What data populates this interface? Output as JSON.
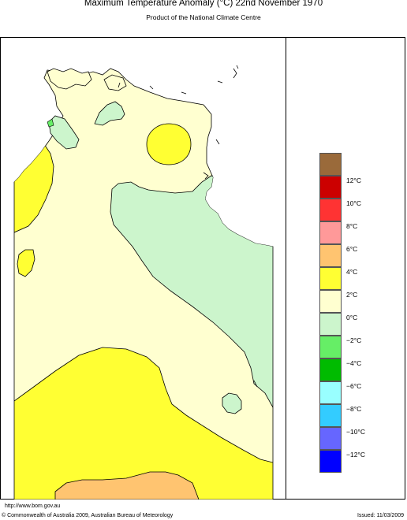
{
  "header": {
    "title": "Maximum Temperature Anomaly (°C)  22nd November 1970",
    "subtitle": "Product of the National Climate Centre"
  },
  "legend": {
    "items": [
      {
        "label": "",
        "color": "#9a6a3a"
      },
      {
        "label": "12°C",
        "color": "#cc0000"
      },
      {
        "label": "10°C",
        "color": "#ff3333"
      },
      {
        "label": "8°C",
        "color": "#ff9999"
      },
      {
        "label": "6°C",
        "color": "#ffc470"
      },
      {
        "label": "4°C",
        "color": "#ffff33"
      },
      {
        "label": "2°C",
        "color": "#ffffd0"
      },
      {
        "label": "0°C",
        "color": "#ccf5cc"
      },
      {
        "label": "−2°C",
        "color": "#66ee66"
      },
      {
        "label": "−4°C",
        "color": "#00bb00"
      },
      {
        "label": "−6°C",
        "color": "#99ffff"
      },
      {
        "label": "−8°C",
        "color": "#33ccff"
      },
      {
        "label": "−10°C",
        "color": "#6666ff"
      },
      {
        "label": "−12°C",
        "color": "#0000ff"
      }
    ]
  },
  "footer": {
    "url": "http://www.bom.gov.au",
    "copyright": "© Commonwealth of Australia 2009, Australian Bureau of Meteorology",
    "issued": "Issued: 11/03/2009"
  }
}
